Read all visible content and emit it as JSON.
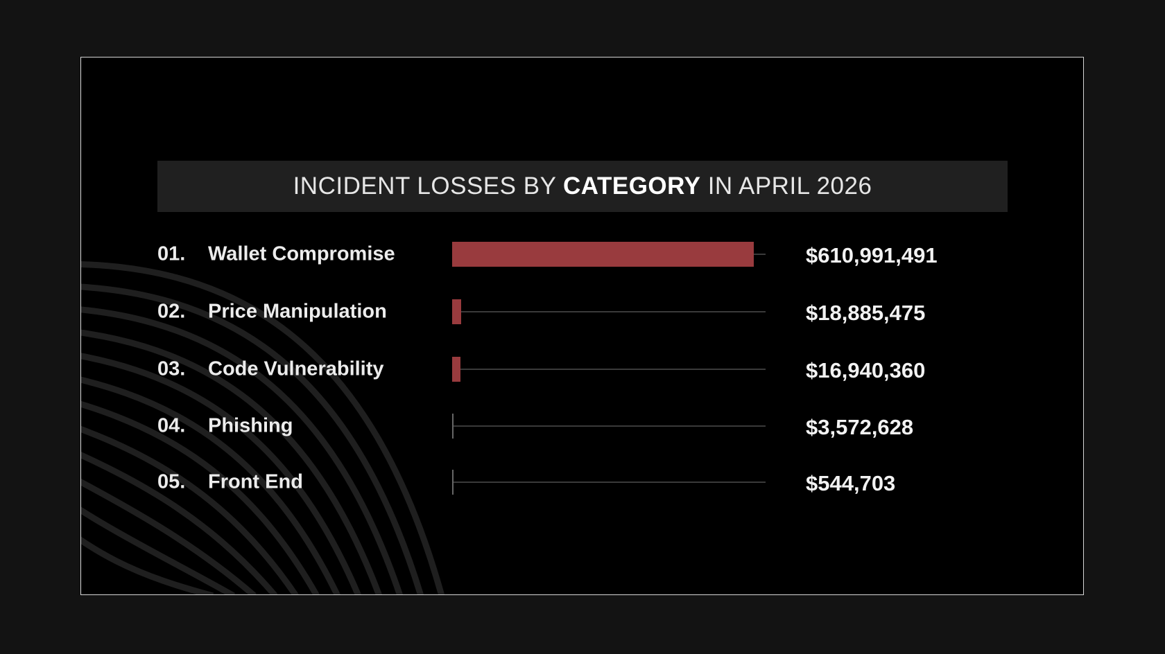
{
  "title": {
    "pre": "INCIDENT LOSSES BY ",
    "bold": "CATEGORY",
    "post": " IN APRIL 2026"
  },
  "colors": {
    "bar": "#993b3e",
    "background": "#000000",
    "title_bar": "#202020"
  },
  "chart_data": {
    "type": "bar",
    "orientation": "horizontal",
    "title": "INCIDENT LOSSES BY CATEGORY IN APRIL 2026",
    "categories": [
      "Wallet Compromise",
      "Price Manipulation",
      "Code Vulnerability",
      "Phishing",
      "Front End"
    ],
    "ranks": [
      "01.",
      "02.",
      "03.",
      "04.",
      "05."
    ],
    "values": [
      610991491,
      18885475,
      16940360,
      3572628,
      544703
    ],
    "value_labels": [
      "$610,991,491",
      "$18,885,475",
      "$16,940,360",
      "$3,572,628",
      "$544,703"
    ],
    "grid": false,
    "legend": "none"
  }
}
